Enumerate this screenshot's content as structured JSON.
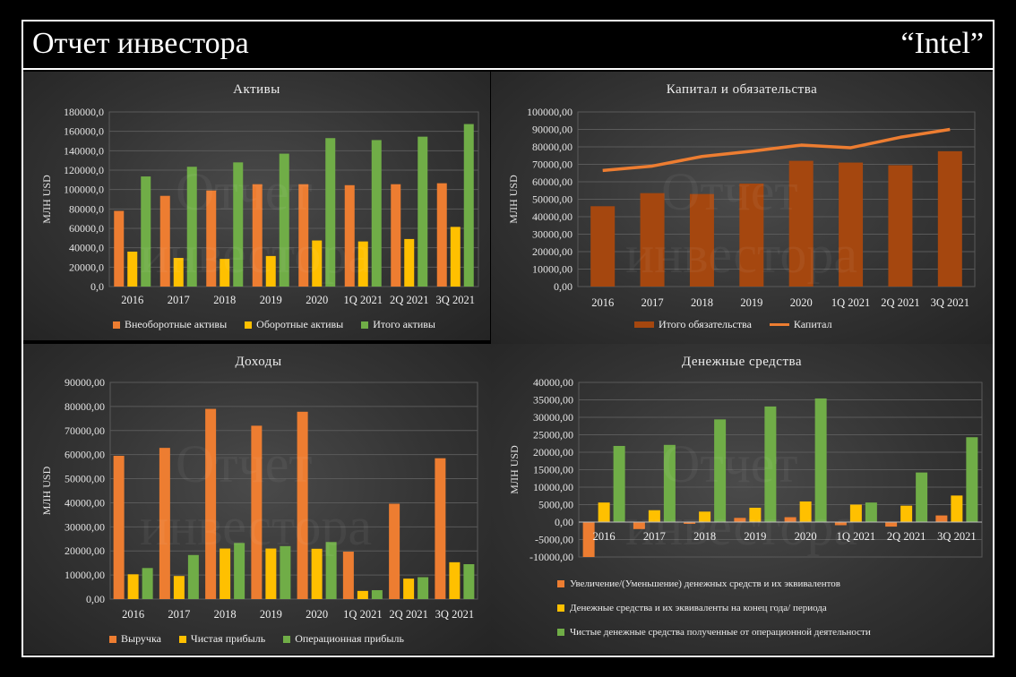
{
  "header": {
    "title": "Отчет инвестора",
    "brand": "“Intel”"
  },
  "watermark": {
    "text": "Отчет инвестора"
  },
  "colors": {
    "orange": "#ED7D31",
    "yellow": "#FFC000",
    "green": "#70AD47",
    "brown": "#A5470F",
    "line": "#ED7D31"
  },
  "chart_data": [
    {
      "id": "assets",
      "type": "bar",
      "title": "Активы",
      "ylabel": "МЛН USD",
      "ylim": [
        0,
        180000
      ],
      "yticks": [
        "0,0",
        "20000,0",
        "40000,0",
        "60000,0",
        "80000,0",
        "100000,0",
        "120000,0",
        "140000,0",
        "160000,0",
        "180000,0"
      ],
      "categories": [
        "2016",
        "2017",
        "2018",
        "2019",
        "2020",
        "1Q 2021",
        "2Q 2021",
        "3Q 2021"
      ],
      "series": [
        {
          "name": "Внеоборотные активы",
          "color": "orange",
          "values": [
            78000,
            93500,
            99000,
            105500,
            105500,
            104500,
            105500,
            106500
          ]
        },
        {
          "name": "Оборотные активы",
          "color": "yellow",
          "values": [
            36000,
            29500,
            28500,
            31500,
            47500,
            46500,
            49000,
            61500
          ]
        },
        {
          "name": "Итого активы",
          "color": "green",
          "values": [
            113500,
            123500,
            128000,
            137000,
            153000,
            151000,
            154500,
            167500
          ]
        }
      ]
    },
    {
      "id": "capital",
      "type": "bar",
      "title": "Капитал и обязательства",
      "ylabel": "МЛН USD",
      "ylim": [
        0,
        100000
      ],
      "yticks": [
        "0,00",
        "10000,00",
        "20000,00",
        "30000,00",
        "40000,00",
        "50000,00",
        "60000,00",
        "70000,00",
        "80000,00",
        "90000,00",
        "100000,00"
      ],
      "categories": [
        "2016",
        "2017",
        "2018",
        "2019",
        "2020",
        "1Q 2021",
        "2Q 2021",
        "3Q 2021"
      ],
      "series": [
        {
          "name": "Итого обязательства",
          "color": "brown",
          "kind": "bar",
          "values": [
            46000,
            53500,
            53000,
            59000,
            72000,
            71000,
            69500,
            77500
          ]
        },
        {
          "name": "Капитал",
          "color": "line",
          "kind": "line",
          "values": [
            66500,
            69000,
            74500,
            77500,
            81000,
            79500,
            85500,
            90000
          ]
        }
      ]
    },
    {
      "id": "income",
      "type": "bar",
      "title": "Доходы",
      "ylabel": "МЛН USD",
      "ylim": [
        0,
        90000
      ],
      "yticks": [
        "0,00",
        "10000,00",
        "20000,00",
        "30000,00",
        "40000,00",
        "50000,00",
        "60000,00",
        "70000,00",
        "80000,00",
        "90000,00"
      ],
      "categories": [
        "2016",
        "2017",
        "2018",
        "2019",
        "2020",
        "1Q 2021",
        "2Q 2021",
        "3Q 2021"
      ],
      "series": [
        {
          "name": "Выручка",
          "color": "orange",
          "values": [
            59500,
            62800,
            79000,
            72000,
            77800,
            19700,
            39600,
            58500
          ]
        },
        {
          "name": "Чистая прибыль",
          "color": "yellow",
          "values": [
            10300,
            9600,
            21000,
            21000,
            20900,
            3400,
            8500,
            15300
          ]
        },
        {
          "name": "Операционная прибыль",
          "color": "green",
          "values": [
            12900,
            18300,
            23300,
            22000,
            23700,
            3700,
            9100,
            14500
          ]
        }
      ]
    },
    {
      "id": "cash",
      "type": "bar",
      "title": "Денежные средства",
      "ylabel": "МЛН USD",
      "ylim": [
        -10000,
        40000
      ],
      "yticks": [
        "-10000,00",
        "-5000,00",
        "0,00",
        "5000,00",
        "10000,00",
        "15000,00",
        "20000,00",
        "25000,00",
        "30000,00",
        "35000,00",
        "40000,00"
      ],
      "categories": [
        "2016",
        "2017",
        "2018",
        "2019",
        "2020",
        "1Q 2021",
        "2Q 2021",
        "3Q 2021"
      ],
      "series": [
        {
          "name": "Увеличение/(Уменьшение) денежных средств и их эквивалентов",
          "color": "orange",
          "values": [
            -10000,
            -2000,
            -500,
            1200,
            1400,
            -900,
            -1300,
            1900
          ]
        },
        {
          "name": "Денежные средства и их эквиваленты на конец года/ периода",
          "color": "yellow",
          "values": [
            5600,
            3400,
            3000,
            4100,
            5900,
            5000,
            4700,
            7600
          ]
        },
        {
          "name": "Чистые денежные средства полученные от операционной деятельности",
          "color": "green",
          "values": [
            21800,
            22100,
            29400,
            33100,
            35400,
            5600,
            14200,
            24300
          ]
        }
      ]
    }
  ]
}
